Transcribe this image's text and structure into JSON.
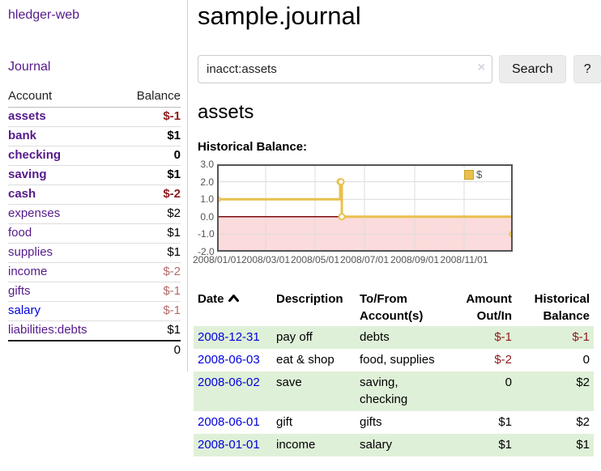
{
  "app": {
    "title": "hledger-web"
  },
  "sidebar": {
    "journal_label": "Journal",
    "table": {
      "headers": {
        "account": "Account",
        "balance": "Balance"
      },
      "rows": [
        {
          "account": "assets",
          "depth": 1,
          "bold": true,
          "balance": "$-1",
          "balance_tone": "neg-strong",
          "link_color": "purple"
        },
        {
          "account": "bank",
          "depth": 2,
          "bold": true,
          "balance": "$1",
          "balance_tone": "normal",
          "link_color": "purple"
        },
        {
          "account": "checking",
          "depth": 3,
          "bold": true,
          "balance": "0",
          "balance_tone": "normal",
          "link_color": "purple"
        },
        {
          "account": "saving",
          "depth": 3,
          "bold": true,
          "balance": "$1",
          "balance_tone": "normal",
          "link_color": "purple"
        },
        {
          "account": "cash",
          "depth": 2,
          "bold": true,
          "balance": "$-2",
          "balance_tone": "neg-strong",
          "link_color": "purple"
        },
        {
          "account": "expenses",
          "depth": 1,
          "bold": false,
          "balance": "$2",
          "balance_tone": "normal",
          "link_color": "purple"
        },
        {
          "account": "food",
          "depth": 2,
          "bold": false,
          "balance": "$1",
          "balance_tone": "normal",
          "link_color": "purple"
        },
        {
          "account": "supplies",
          "depth": 2,
          "bold": false,
          "balance": "$1",
          "balance_tone": "normal",
          "link_color": "purple"
        },
        {
          "account": "income",
          "depth": 1,
          "bold": false,
          "balance": "$-2",
          "balance_tone": "neg-muted",
          "link_color": "purple"
        },
        {
          "account": "gifts",
          "depth": 2,
          "bold": false,
          "balance": "$-1",
          "balance_tone": "neg-muted",
          "link_color": "purple"
        },
        {
          "account": "salary",
          "depth": 2,
          "bold": false,
          "balance": "$-1",
          "balance_tone": "neg-muted",
          "link_color": "blue"
        },
        {
          "account": "liabilities:debts",
          "depth": 1,
          "bold": false,
          "balance": "$1",
          "balance_tone": "normal",
          "link_color": "purple"
        }
      ],
      "total": "0"
    }
  },
  "main": {
    "title": "sample.journal",
    "search": {
      "value": "inacct:assets",
      "clear_icon": "×",
      "button_label": "Search",
      "help_label": "?"
    },
    "account_heading": "assets",
    "chart_label": "Historical Balance:"
  },
  "chart_data": {
    "type": "line",
    "title": "Historical Balance:",
    "series": [
      {
        "name": "$",
        "step": true,
        "points": [
          [
            "2008-01-01",
            1
          ],
          [
            "2008-06-01",
            2
          ],
          [
            "2008-06-02",
            2
          ],
          [
            "2008-06-03",
            0
          ],
          [
            "2008-12-31",
            -1
          ]
        ]
      }
    ],
    "x_range": [
      "2008-01-01",
      "2008-12-31"
    ],
    "ylim": [
      -2,
      3
    ],
    "x_ticks": [
      "2008/01/01",
      "2008/03/01",
      "2008/05/01",
      "2008/07/01",
      "2008/09/01",
      "2008/11/01"
    ],
    "y_ticks": [
      "3.0",
      "2.0",
      "1.0",
      "0.0",
      "-1.0",
      "-2.0"
    ],
    "legend": {
      "label": "$",
      "position": "top-right"
    },
    "grid": true,
    "negative_region_shaded": true
  },
  "register": {
    "headers": [
      {
        "label": "Date",
        "sorted": "asc",
        "align": "left"
      },
      {
        "label": "Description",
        "align": "left"
      },
      {
        "label": "To/From Account(s)",
        "align": "left"
      },
      {
        "label": "Amount Out/In",
        "align": "right"
      },
      {
        "label": "Historical Balance",
        "align": "right"
      }
    ],
    "rows": [
      {
        "date": "2008-12-31",
        "description": "pay off",
        "accounts": "debts",
        "amount": "$-1",
        "amount_neg": true,
        "balance": "$-1",
        "balance_neg": true
      },
      {
        "date": "2008-06-03",
        "description": "eat & shop",
        "accounts": "food, supplies",
        "amount": "$-2",
        "amount_neg": true,
        "balance": "0",
        "balance_neg": false
      },
      {
        "date": "2008-06-02",
        "description": "save",
        "accounts": "saving, checking",
        "amount": "0",
        "amount_neg": false,
        "balance": "$2",
        "balance_neg": false
      },
      {
        "date": "2008-06-01",
        "description": "gift",
        "accounts": "gifts",
        "amount": "$1",
        "amount_neg": false,
        "balance": "$2",
        "balance_neg": false
      },
      {
        "date": "2008-01-01",
        "description": "income",
        "accounts": "salary",
        "amount": "$1",
        "amount_neg": false,
        "balance": "$1",
        "balance_neg": false
      }
    ]
  },
  "colors": {
    "accent_purple": "#551a8b",
    "link_blue": "#0000dd",
    "negative_strong": "#8e1a1a",
    "negative_muted": "#b56a6a",
    "row_stripe_green": "#dff0d8",
    "series_yellow": "#e9c04d",
    "negative_region_pink": "#fbdbdb",
    "zero_line_red": "#7d0b0b",
    "axis_text": "#545454"
  }
}
